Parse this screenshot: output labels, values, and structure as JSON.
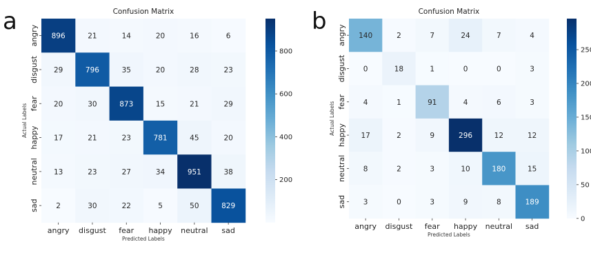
{
  "chart_data": [
    {
      "type": "heatmap",
      "panel_label": "a",
      "title": "Confusion Matrix",
      "xlabel": "Predicted Labels",
      "ylabel": "Actual Labels",
      "x_categories": [
        "angry",
        "disgust",
        "fear",
        "happy",
        "neutral",
        "sad"
      ],
      "y_categories": [
        "angry",
        "disgust",
        "fear",
        "happy",
        "neutral",
        "sad"
      ],
      "values": [
        [
          896,
          21,
          14,
          20,
          16,
          6
        ],
        [
          29,
          796,
          35,
          20,
          28,
          23
        ],
        [
          20,
          30,
          873,
          15,
          21,
          29
        ],
        [
          17,
          21,
          23,
          781,
          45,
          20
        ],
        [
          13,
          23,
          27,
          34,
          951,
          38
        ],
        [
          2,
          30,
          22,
          5,
          50,
          829
        ]
      ],
      "colorbar": {
        "colormap": "Blues",
        "min": 0,
        "max": 951,
        "ticks": [
          200,
          400,
          600,
          800
        ]
      }
    },
    {
      "type": "heatmap",
      "panel_label": "b",
      "title": "Confusion Matrix",
      "xlabel": "Predicted Labels",
      "ylabel": "Actual Labels",
      "x_categories": [
        "angry",
        "disgust",
        "fear",
        "happy",
        "neutral",
        "sad"
      ],
      "y_categories": [
        "angry",
        "disgust",
        "fear",
        "happy",
        "neutral",
        "sad"
      ],
      "values": [
        [
          140,
          2,
          7,
          24,
          7,
          4
        ],
        [
          0,
          18,
          1,
          0,
          0,
          3
        ],
        [
          4,
          1,
          91,
          4,
          6,
          3
        ],
        [
          17,
          2,
          9,
          296,
          12,
          12
        ],
        [
          8,
          2,
          3,
          10,
          180,
          15
        ],
        [
          3,
          0,
          3,
          9,
          8,
          189
        ]
      ],
      "colorbar": {
        "colormap": "Blues",
        "min": 0,
        "max": 296,
        "ticks": [
          0,
          50,
          100,
          150,
          200,
          250
        ]
      }
    }
  ]
}
